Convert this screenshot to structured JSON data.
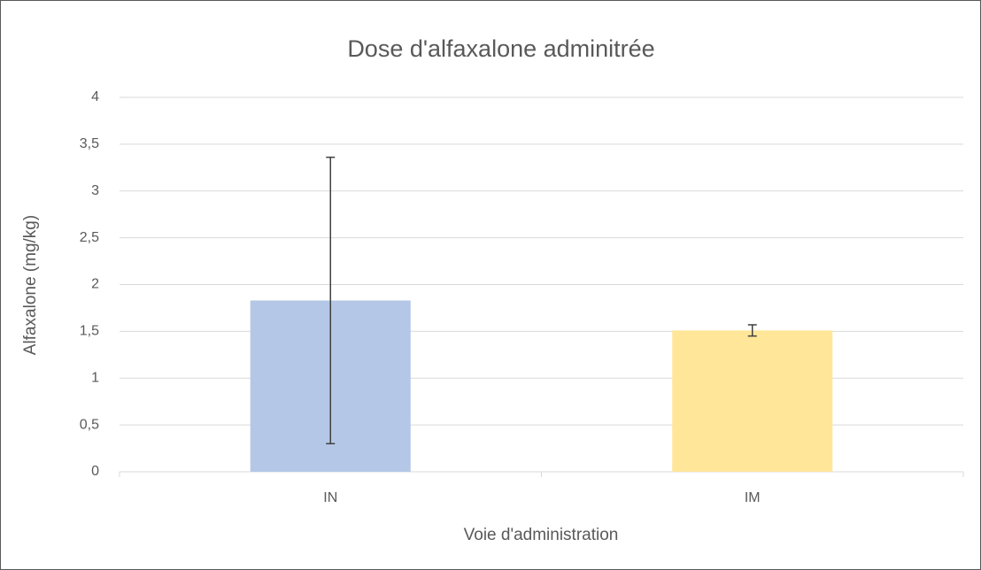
{
  "chart_data": {
    "type": "bar",
    "title": "Dose d'alfaxalone adminitrée",
    "x_label": "Voie d'administration",
    "y_label": "Alfaxalone (mg/kg)",
    "categories": [
      "IN",
      "IM"
    ],
    "values": [
      1.83,
      1.51
    ],
    "errors": [
      1.53,
      0.06
    ],
    "colors": [
      "#b4c7e7",
      "#ffe699"
    ],
    "ylim": [
      0,
      4
    ],
    "yticks": [
      0,
      {
        "value": 0.5,
        "label": "0,5"
      },
      1,
      {
        "value": 1.5,
        "label": "1,5"
      },
      2,
      {
        "value": 2.5,
        "label": "2,5"
      },
      3,
      {
        "value": 3.5,
        "label": "3,5"
      },
      4
    ],
    "grid": true
  }
}
